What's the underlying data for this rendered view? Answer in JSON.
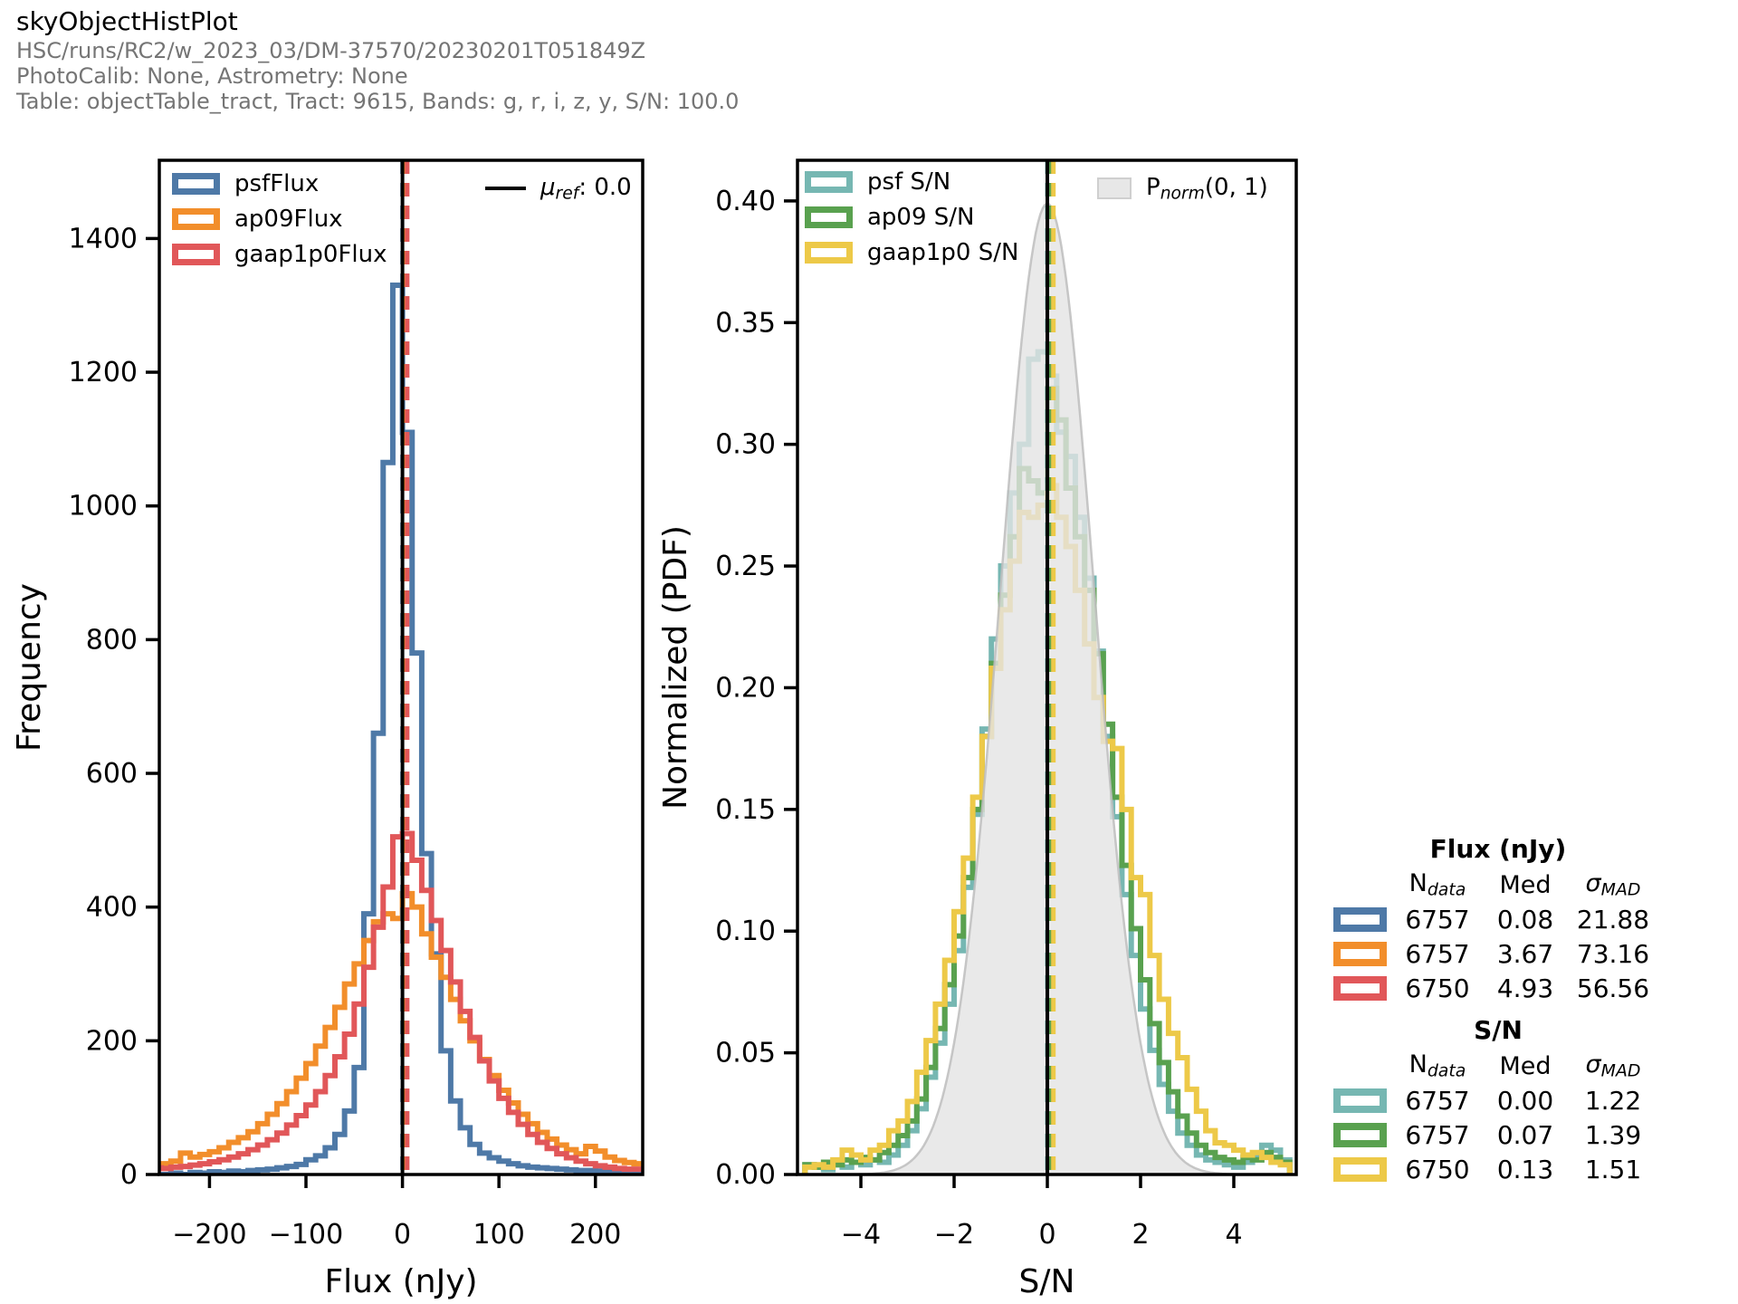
{
  "header": {
    "title": "skyObjectHistPlot",
    "line1": "HSC/runs/RC2/w_2023_03/DM-37570/20230201T051849Z",
    "line2": "PhotoCalib: None, Astrometry: None",
    "line3": "Table: objectTable_tract, Tract: 9615, Bands: g, r, i, z, y, S/N: 100.0"
  },
  "colors": {
    "blue": "#4E79A7",
    "orange": "#F28E2B",
    "red": "#E15759",
    "teal": "#76B7B2",
    "green": "#59A14F",
    "yellow": "#EDC948",
    "norm_fill": "#E4E4E4",
    "norm_edge": "#BDBDBD",
    "axis": "#000000",
    "header_gray": "#757575"
  },
  "chart_data": [
    {
      "type": "histogram-step",
      "xlabel": "Flux (nJy)",
      "ylabel": "Frequency",
      "xlim": [
        -252,
        249
      ],
      "ylim": [
        0,
        1517
      ],
      "grid": false,
      "legend_position": "upper left",
      "xticks": [
        -200,
        -100,
        0,
        100,
        200
      ],
      "xtick_labels": [
        "−200",
        "−100",
        "0",
        "100",
        "200"
      ],
      "yticks": [
        0,
        200,
        400,
        600,
        800,
        1000,
        1200,
        1400
      ],
      "ytick_labels": [
        "0",
        "200",
        "400",
        "600",
        "800",
        "1000",
        "1200",
        "1400"
      ],
      "bins": {
        "start": -260,
        "width": 10
      },
      "series": [
        {
          "name": "psfFlux",
          "color": "#4E79A7",
          "values": [
            0,
            0,
            2,
            0,
            3,
            2,
            4,
            3,
            5,
            4,
            6,
            7,
            8,
            10,
            12,
            15,
            22,
            28,
            40,
            60,
            95,
            160,
            390,
            660,
            1065,
            1330,
            1110,
            780,
            480,
            330,
            185,
            110,
            70,
            45,
            32,
            25,
            20,
            16,
            13,
            11,
            10,
            9,
            8,
            7,
            6,
            6,
            5,
            4,
            5,
            3,
            4,
            4
          ]
        },
        {
          "name": "ap09Flux",
          "color": "#F28E2B",
          "values": [
            14,
            16,
            20,
            32,
            26,
            30,
            34,
            40,
            48,
            55,
            64,
            76,
            90,
            106,
            124,
            144,
            166,
            192,
            220,
            250,
            285,
            315,
            350,
            378,
            390,
            383,
            420,
            400,
            360,
            325,
            295,
            262,
            230,
            200,
            172,
            148,
            126,
            107,
            90,
            76,
            63,
            53,
            44,
            37,
            31,
            42,
            35,
            26,
            21,
            18,
            16,
            15
          ]
        },
        {
          "name": "gaap1p0Flux",
          "color": "#E15759",
          "values": [
            10,
            9,
            11,
            12,
            14,
            16,
            19,
            22,
            26,
            31,
            37,
            44,
            52,
            62,
            74,
            88,
            104,
            124,
            148,
            176,
            210,
            255,
            310,
            370,
            430,
            505,
            510,
            470,
            425,
            380,
            335,
            288,
            244,
            205,
            170,
            140,
            114,
            93,
            75,
            60,
            48,
            39,
            31,
            25,
            20,
            16,
            13,
            11,
            9,
            8,
            8,
            9
          ]
        }
      ],
      "vlines": [
        {
          "x": 0.08,
          "color": "#4E79A7",
          "dash": true,
          "name": "psfFlux-median"
        },
        {
          "x": 3.67,
          "color": "#F28E2B",
          "dash": true,
          "name": "ap09Flux-median"
        },
        {
          "x": 4.93,
          "color": "#E15759",
          "dash": true,
          "name": "gaap1p0Flux-median"
        },
        {
          "x": 0.0,
          "color": "#000000",
          "dash": false,
          "name": "mu-ref"
        }
      ],
      "legend": [
        {
          "label": "psfFlux"
        },
        {
          "label": "ap09Flux"
        },
        {
          "label": "gaap1p0Flux"
        }
      ],
      "ref_legend": {
        "prefix": "μ",
        "sub": "ref",
        "suffix": ": 0.0"
      }
    },
    {
      "type": "histogram-step",
      "xlabel": "S/N",
      "ylabel": "Normalized (PDF)",
      "xlim": [
        -5.36,
        5.34
      ],
      "ylim": [
        0,
        0.4167
      ],
      "grid": false,
      "legend_position": "upper left",
      "xticks": [
        -4,
        -2,
        0,
        2,
        4
      ],
      "xtick_labels": [
        "−4",
        "−2",
        "0",
        "2",
        "4"
      ],
      "yticks": [
        0,
        0.05,
        0.1,
        0.15,
        0.2,
        0.25,
        0.3,
        0.35,
        0.4
      ],
      "ytick_labels": [
        "0.00",
        "0.05",
        "0.10",
        "0.15",
        "0.20",
        "0.25",
        "0.30",
        "0.35",
        "0.40"
      ],
      "bins": {
        "start": -5.2,
        "width": 0.2
      },
      "series": [
        {
          "name": "psf S/N",
          "color": "#76B7B2",
          "values": [
            0.004,
            0.003,
            0.002,
            0.004,
            0.003,
            0.005,
            0.004,
            0.006,
            0.005,
            0.008,
            0.012,
            0.018,
            0.027,
            0.04,
            0.054,
            0.07,
            0.092,
            0.118,
            0.148,
            0.183,
            0.22,
            0.25,
            0.28,
            0.3,
            0.335,
            0.338,
            0.328,
            0.305,
            0.295,
            0.27,
            0.245,
            0.215,
            0.18,
            0.147,
            0.115,
            0.09,
            0.068,
            0.051,
            0.037,
            0.026,
            0.017,
            0.012,
            0.008,
            0.006,
            0.005,
            0.004,
            0.003,
            0.005,
            0.008,
            0.012,
            0.01,
            0.006
          ]
        },
        {
          "name": "ap09 S/N",
          "color": "#59A14F",
          "values": [
            0.004,
            0.003,
            0.005,
            0.004,
            0.006,
            0.005,
            0.007,
            0.006,
            0.009,
            0.012,
            0.016,
            0.022,
            0.031,
            0.044,
            0.06,
            0.078,
            0.098,
            0.122,
            0.15,
            0.18,
            0.21,
            0.238,
            0.262,
            0.29,
            0.285,
            0.28,
            0.323,
            0.31,
            0.282,
            0.262,
            0.24,
            0.214,
            0.185,
            0.155,
            0.127,
            0.101,
            0.08,
            0.062,
            0.046,
            0.034,
            0.024,
            0.017,
            0.012,
            0.009,
            0.007,
            0.006,
            0.005,
            0.007,
            0.006,
            0.009,
            0.007,
            0.005
          ]
        },
        {
          "name": "gaap1p0 S/N",
          "color": "#EDC948",
          "values": [
            0.003,
            0.004,
            0.003,
            0.006,
            0.01,
            0.008,
            0.006,
            0.01,
            0.012,
            0.018,
            0.022,
            0.03,
            0.042,
            0.055,
            0.07,
            0.088,
            0.108,
            0.13,
            0.155,
            0.18,
            0.208,
            0.232,
            0.252,
            0.272,
            0.27,
            0.275,
            0.283,
            0.27,
            0.258,
            0.24,
            0.218,
            0.196,
            0.178,
            0.175,
            0.15,
            0.122,
            0.115,
            0.09,
            0.072,
            0.058,
            0.048,
            0.035,
            0.026,
            0.018,
            0.013,
            0.012,
            0.01,
            0.008,
            0.009,
            0.007,
            0.005,
            0.004
          ]
        }
      ],
      "normal_pdf": {
        "mu": 0,
        "sigma": 1,
        "amplitude": 0.39894
      },
      "vlines": [
        {
          "x": 0.0,
          "color": "#76B7B2",
          "dash": true,
          "name": "psf-sn-median"
        },
        {
          "x": 0.07,
          "color": "#59A14F",
          "dash": true,
          "name": "ap09-sn-median"
        },
        {
          "x": 0.13,
          "color": "#EDC948",
          "dash": true,
          "name": "gaap1p0-sn-median"
        },
        {
          "x": 0.0,
          "color": "#000000",
          "dash": false,
          "name": "ref-zero"
        }
      ],
      "legend": [
        {
          "label": "psf S/N"
        },
        {
          "label": "ap09 S/N"
        },
        {
          "label": "gaap1p0 S/N"
        }
      ],
      "norm_legend": {
        "prefix": "P",
        "sub": "norm",
        "suffix": "(0, 1)"
      }
    }
  ],
  "stats": {
    "columns": {
      "n_main": "N",
      "n_sub": "data",
      "med": "Med",
      "sigma_main": "σ",
      "sigma_sub": "MAD"
    },
    "flux": {
      "title": "Flux (nJy)",
      "rows": [
        {
          "color": "#4E79A7",
          "n": "6757",
          "med": "0.08",
          "mad": "21.88"
        },
        {
          "color": "#F28E2B",
          "n": "6757",
          "med": "3.67",
          "mad": "73.16"
        },
        {
          "color": "#E15759",
          "n": "6750",
          "med": "4.93",
          "mad": "56.56"
        }
      ]
    },
    "sn": {
      "title": "S/N",
      "rows": [
        {
          "color": "#76B7B2",
          "n": "6757",
          "med": "0.00",
          "mad": "1.22"
        },
        {
          "color": "#59A14F",
          "n": "6757",
          "med": "0.07",
          "mad": "1.39"
        },
        {
          "color": "#EDC948",
          "n": "6750",
          "med": "0.13",
          "mad": "1.51"
        }
      ]
    }
  }
}
